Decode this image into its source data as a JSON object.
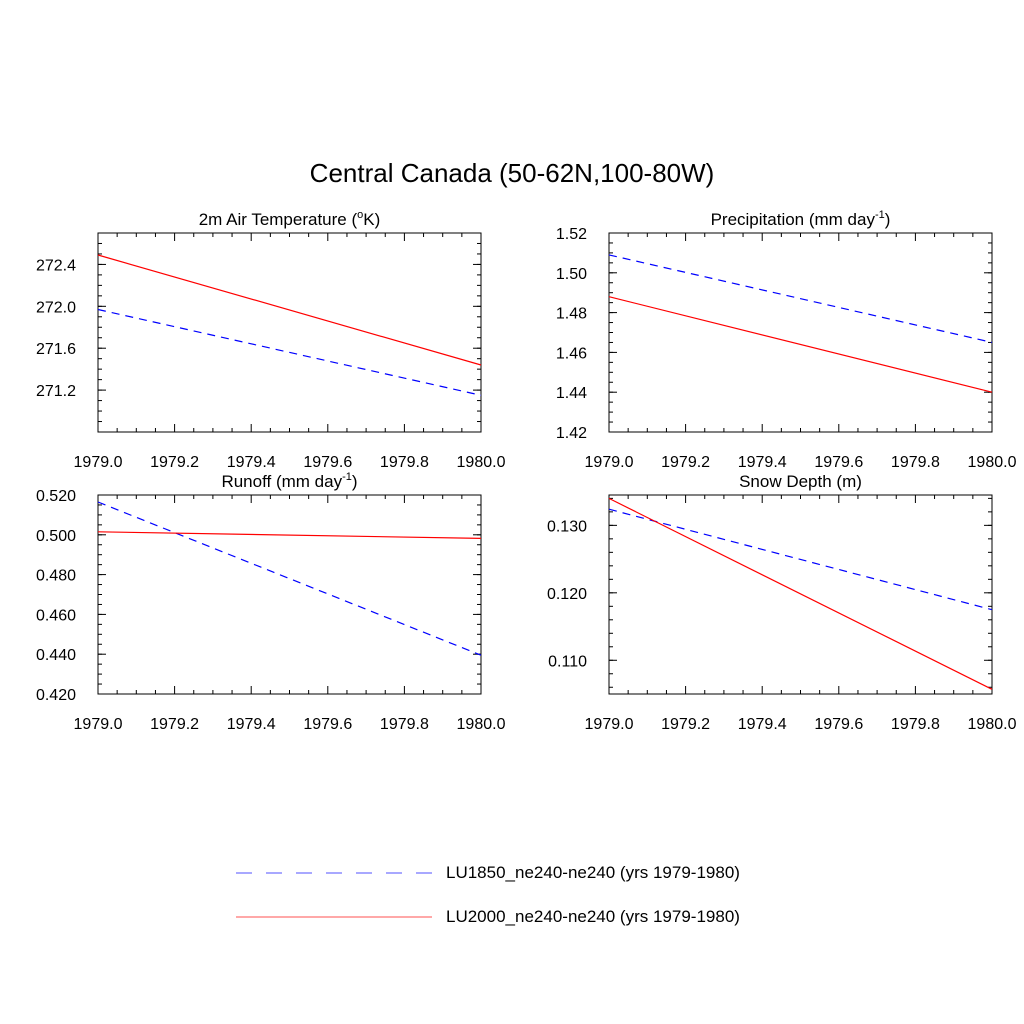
{
  "title": "Central Canada (50-62N,100-80W)",
  "legend": {
    "placement": "bottom-center",
    "items": [
      {
        "label": "LU1850_ne240-ne240 (yrs 1979-1980)",
        "color": "#0000ff",
        "style": "dashed"
      },
      {
        "label": "LU2000_ne240-ne240 (yrs 1979-1980)",
        "color": "#ff0000",
        "style": "solid"
      }
    ]
  },
  "chart_data": [
    {
      "type": "line",
      "title": "2m Air Temperature (",
      "title_sup": "o",
      "title_after": "K)",
      "xlim": [
        1979.0,
        1980.0
      ],
      "ylim": [
        270.8,
        272.7
      ],
      "x_ticks": [
        "1979.0",
        "1979.2",
        "1979.4",
        "1979.6",
        "1979.8",
        "1980.0"
      ],
      "y_ticks": [
        271.2,
        271.6,
        272.0,
        272.4
      ],
      "y_tick_labels": [
        "271.2",
        "271.6",
        "272.0",
        "272.4"
      ],
      "y_minor_step": 0.1,
      "series": [
        {
          "name": "LU1850_ne240-ne240 (yrs 1979-1980)",
          "x": [
            1979.0,
            1980.0
          ],
          "y": [
            271.97,
            271.15
          ]
        },
        {
          "name": "LU2000_ne240-ne240 (yrs 1979-1980)",
          "x": [
            1979.0,
            1980.0
          ],
          "y": [
            272.49,
            271.44
          ]
        }
      ]
    },
    {
      "type": "line",
      "title": "Precipitation (mm day",
      "title_sup": "-1",
      "title_after": ")",
      "xlim": [
        1979.0,
        1980.0
      ],
      "ylim": [
        1.42,
        1.52
      ],
      "x_ticks": [
        "1979.0",
        "1979.2",
        "1979.4",
        "1979.6",
        "1979.8",
        "1980.0"
      ],
      "y_ticks": [
        1.42,
        1.44,
        1.46,
        1.48,
        1.5,
        1.52
      ],
      "y_tick_labels": [
        "1.42",
        "1.44",
        "1.46",
        "1.48",
        "1.50",
        "1.52"
      ],
      "y_minor_step": 0.005,
      "series": [
        {
          "name": "LU1850_ne240-ne240 (yrs 1979-1980)",
          "x": [
            1979.0,
            1980.0
          ],
          "y": [
            1.509,
            1.465
          ]
        },
        {
          "name": "LU2000_ne240-ne240 (yrs 1979-1980)",
          "x": [
            1979.0,
            1980.0
          ],
          "y": [
            1.488,
            1.44
          ]
        }
      ]
    },
    {
      "type": "line",
      "title": "Runoff (mm day",
      "title_sup": "-1",
      "title_after": ")",
      "xlim": [
        1979.0,
        1980.0
      ],
      "ylim": [
        0.42,
        0.52
      ],
      "x_ticks": [
        "1979.0",
        "1979.2",
        "1979.4",
        "1979.6",
        "1979.8",
        "1980.0"
      ],
      "y_ticks": [
        0.42,
        0.44,
        0.46,
        0.48,
        0.5,
        0.52
      ],
      "y_tick_labels": [
        "0.420",
        "0.440",
        "0.460",
        "0.480",
        "0.500",
        "0.520"
      ],
      "y_minor_step": 0.005,
      "series": [
        {
          "name": "LU1850_ne240-ne240 (yrs 1979-1980)",
          "x": [
            1979.0,
            1980.0
          ],
          "y": [
            0.5165,
            0.4395
          ]
        },
        {
          "name": "LU2000_ne240-ne240 (yrs 1979-1980)",
          "x": [
            1979.0,
            1980.0
          ],
          "y": [
            0.5015,
            0.4982
          ]
        }
      ]
    },
    {
      "type": "line",
      "title": "Snow Depth (m)",
      "title_sup": "",
      "title_after": "",
      "xlim": [
        1979.0,
        1980.0
      ],
      "ylim": [
        0.105,
        0.1345
      ],
      "x_ticks": [
        "1979.0",
        "1979.2",
        "1979.4",
        "1979.6",
        "1979.8",
        "1980.0"
      ],
      "y_ticks": [
        0.11,
        0.12,
        0.13
      ],
      "y_tick_labels": [
        "0.110",
        "0.120",
        "0.130"
      ],
      "y_minor_step": 0.002,
      "series": [
        {
          "name": "LU1850_ne240-ne240 (yrs 1979-1980)",
          "x": [
            1979.0,
            1980.0
          ],
          "y": [
            0.1324,
            0.1175
          ]
        },
        {
          "name": "LU2000_ne240-ne240 (yrs 1979-1980)",
          "x": [
            1979.0,
            1980.0
          ],
          "y": [
            0.134,
            0.1057
          ]
        }
      ]
    }
  ]
}
